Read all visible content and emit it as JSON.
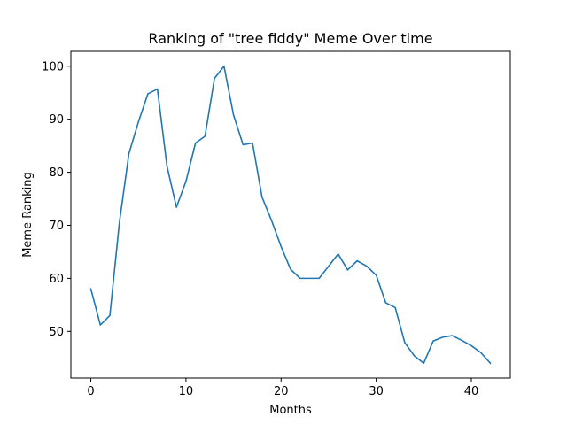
{
  "chart_data": {
    "type": "line",
    "title": "Ranking of \"tree fiddy\" Meme Over time",
    "xlabel": "Months",
    "ylabel": "Meme Ranking",
    "xlim": [
      -2.1,
      44.1
    ],
    "ylim": [
      41.2,
      102.8
    ],
    "xticks": [
      0,
      10,
      20,
      30,
      40
    ],
    "yticks": [
      50,
      60,
      70,
      80,
      90,
      100
    ],
    "grid": false,
    "line_color": "#1f77b4",
    "series": [
      {
        "x": [
          0,
          1,
          2,
          3,
          4,
          5,
          6,
          7,
          8,
          9,
          10,
          11,
          12,
          13,
          14,
          15,
          16,
          17,
          18,
          19,
          20,
          21,
          22,
          23,
          24,
          25,
          26,
          27,
          28,
          29,
          30,
          31,
          32,
          33,
          34,
          35,
          36,
          37,
          38,
          39,
          40,
          41,
          42
        ],
        "values": [
          58,
          51.2,
          53,
          70.5,
          83.5,
          89.5,
          94.8,
          95.7,
          81.2,
          73.4,
          78.3,
          85.5,
          86.8,
          97.7,
          100,
          90.8,
          85.2,
          85.5,
          75.3,
          70.9,
          66,
          61.7,
          60,
          60,
          60,
          62.3,
          64.6,
          61.6,
          63.3,
          62.3,
          60.6,
          55.4,
          54.5,
          47.9,
          45.4,
          44,
          48.2,
          48.9,
          49.2,
          48.3,
          47.3,
          46,
          44
        ]
      }
    ]
  }
}
